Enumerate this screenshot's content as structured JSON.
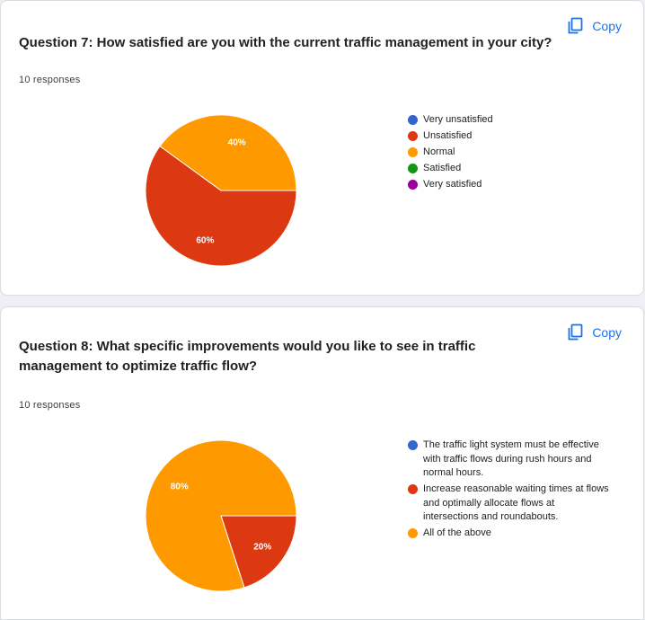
{
  "copy_label": "Copy",
  "colors": {
    "blue": "#3366cc",
    "red": "#dc3912",
    "orange": "#ff9900",
    "green": "#109618",
    "purple": "#990099",
    "accent": "#1a73e8"
  },
  "questions": [
    {
      "title": "Question 7: How satisfied are you with the current traffic management in your city?",
      "responses": "10 responses"
    },
    {
      "title": "Question 8: What specific improvements would you like to see in traffic management to optimize traffic flow?",
      "responses": "10 responses"
    }
  ],
  "chart_data": [
    {
      "type": "pie",
      "categories": [
        "Very unsatisfied",
        "Unsatisfied",
        "Normal",
        "Satisfied",
        "Very satisfied"
      ],
      "values": [
        0,
        60,
        40,
        0,
        0
      ],
      "colors": [
        "#3366cc",
        "#dc3912",
        "#ff9900",
        "#109618",
        "#990099"
      ],
      "legend": "right",
      "data_labels": [
        "",
        "60%",
        "40%",
        "",
        ""
      ]
    },
    {
      "type": "pie",
      "categories": [
        "The traffic light system must be effective with traffic flows during rush hours and normal hours.",
        "Increase reasonable waiting times at flows and optimally allocate flows at intersections and roundabouts.",
        "All of the above"
      ],
      "values": [
        0,
        20,
        80
      ],
      "colors": [
        "#3366cc",
        "#dc3912",
        "#ff9900"
      ],
      "legend": "right",
      "data_labels": [
        "",
        "20%",
        "80%"
      ]
    }
  ]
}
